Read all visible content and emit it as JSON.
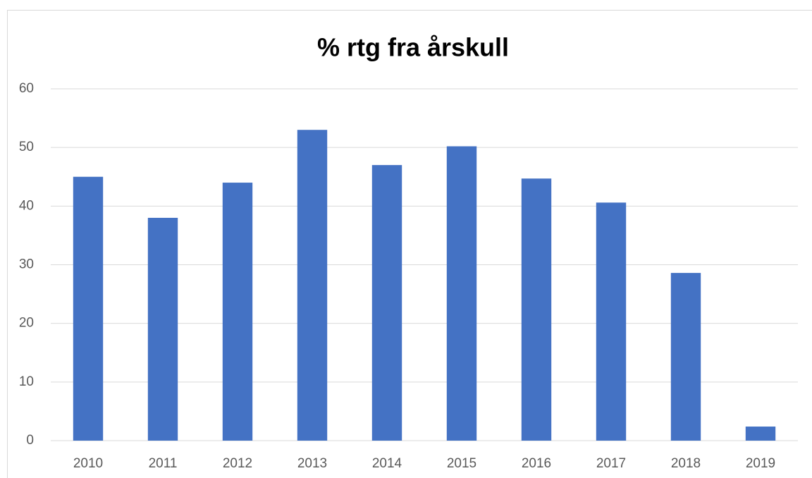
{
  "chart_data": {
    "type": "bar",
    "title": "% rtg fra årskull",
    "categories": [
      "2010",
      "2011",
      "2012",
      "2013",
      "2014",
      "2015",
      "2016",
      "2017",
      "2018",
      "2019"
    ],
    "values": [
      45,
      38,
      44,
      53,
      47,
      50.2,
      44.7,
      40.6,
      28.6,
      2.4
    ],
    "color": "#4472c4",
    "ylim": [
      0,
      60
    ],
    "yticks": [
      0,
      10,
      20,
      30,
      40,
      50,
      60
    ],
    "grid": true
  }
}
